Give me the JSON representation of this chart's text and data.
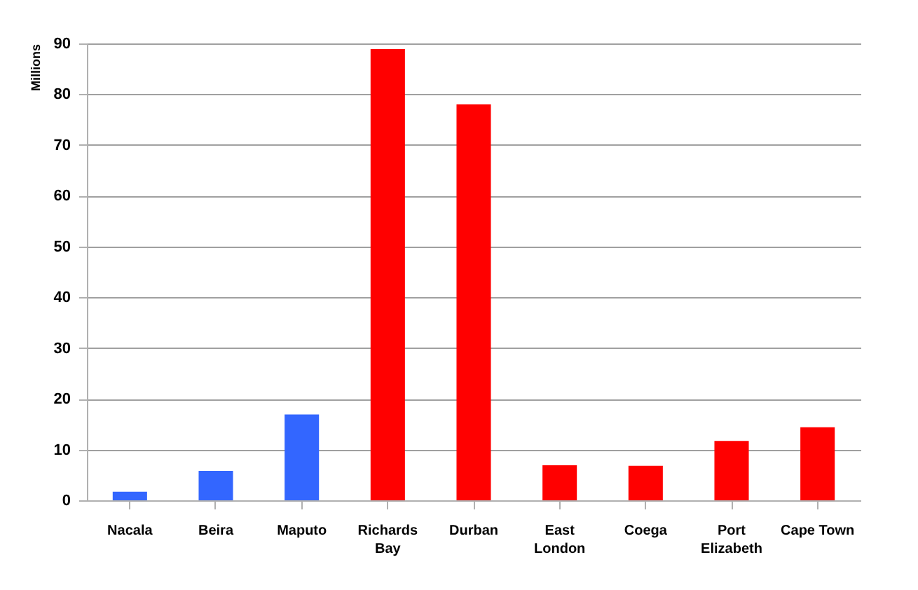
{
  "chart_data": {
    "type": "bar",
    "ylabel": "Millions",
    "categories": [
      "Nacala",
      "Beira",
      "Maputo",
      "Richards Bay",
      "Durban",
      "East London",
      "Coega",
      "Port Elizabeth",
      "Cape Town"
    ],
    "values": [
      1.7,
      5.8,
      16.9,
      88.9,
      78.0,
      6.9,
      6.8,
      11.7,
      14.4
    ],
    "colors": [
      "#3366ff",
      "#3366ff",
      "#3366ff",
      "#ff0000",
      "#ff0000",
      "#ff0000",
      "#ff0000",
      "#ff0000",
      "#ff0000"
    ],
    "ylim": [
      0,
      90
    ],
    "yticks": [
      0,
      10,
      20,
      30,
      40,
      50,
      60,
      70,
      80,
      90
    ],
    "grid": "y"
  }
}
